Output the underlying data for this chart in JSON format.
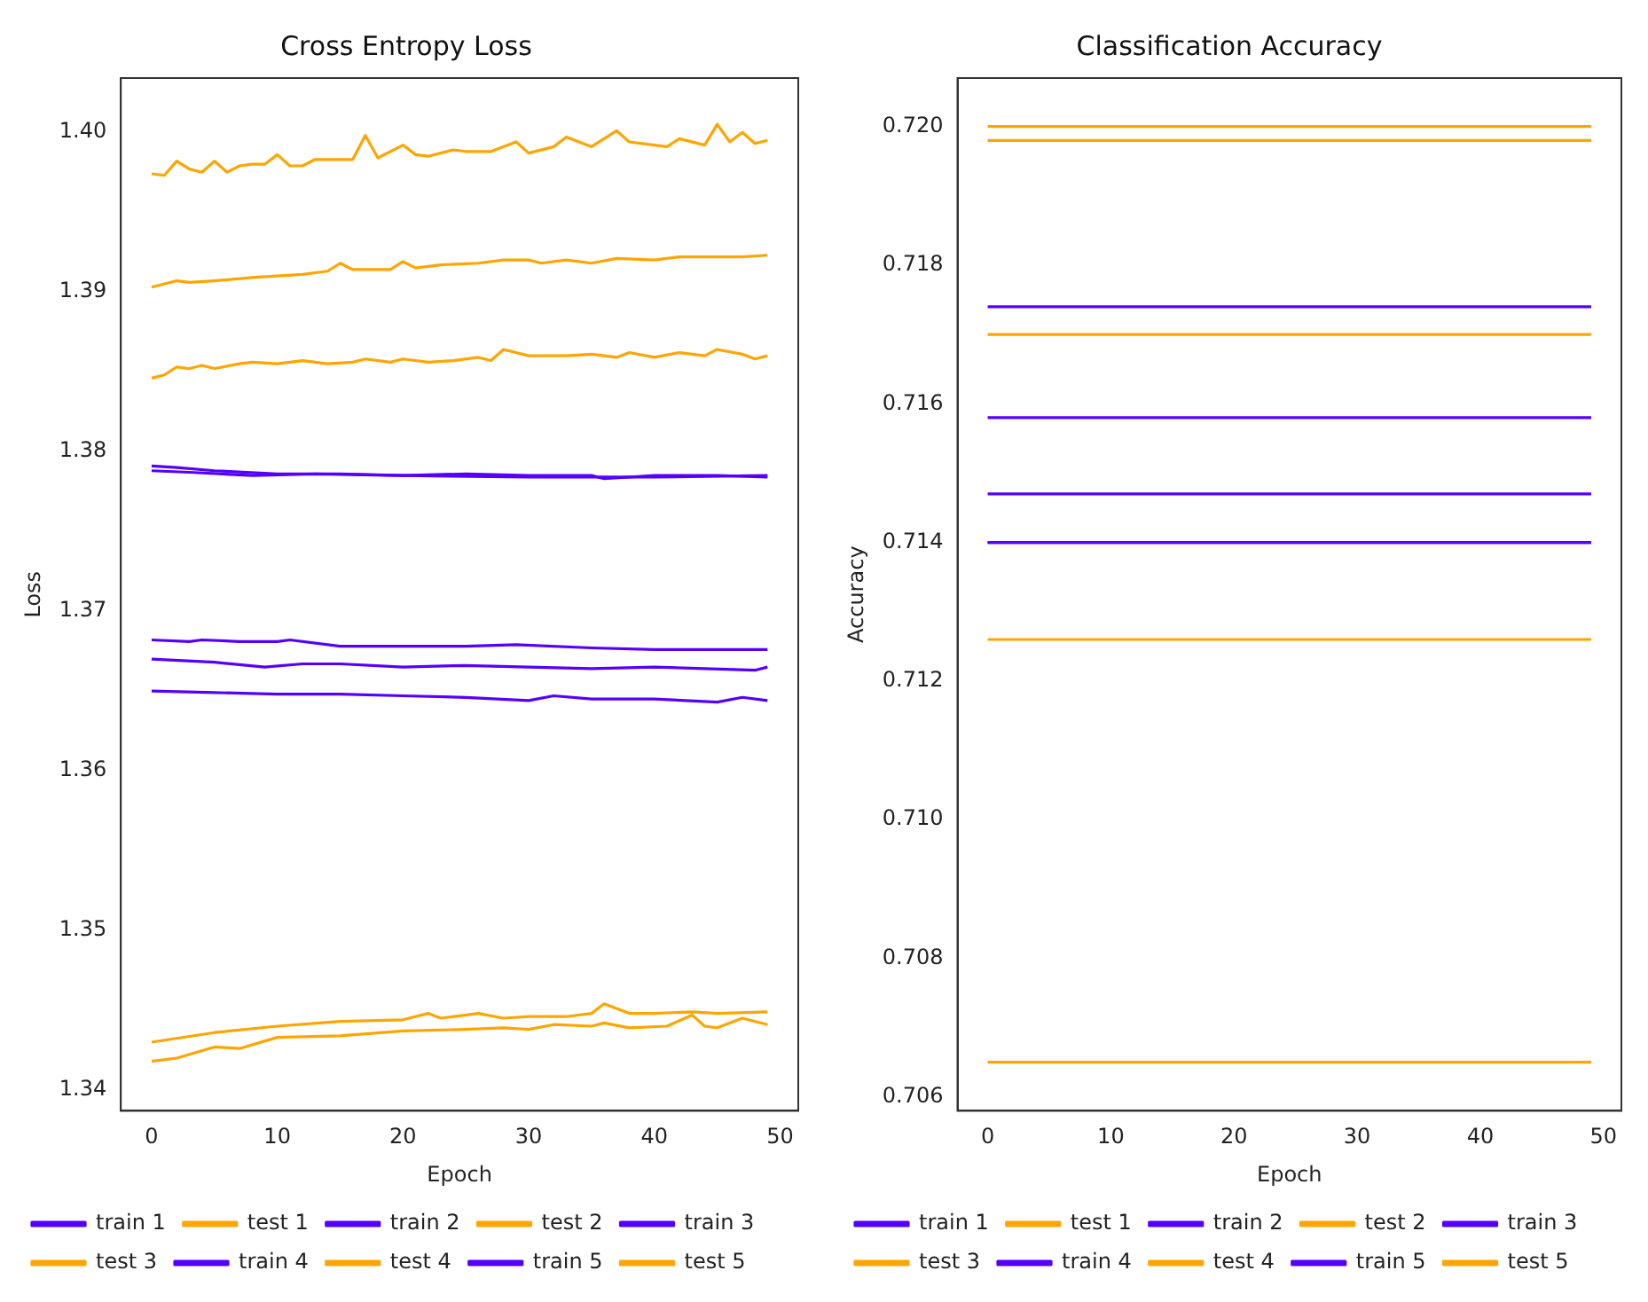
{
  "chart_data": [
    {
      "type": "line",
      "title": "Cross Entropy Loss",
      "xlabel": "Epoch",
      "ylabel": "Loss",
      "legend": "bottom left",
      "xlim": [
        -2.45,
        51.45
      ],
      "xticks": [
        0,
        10,
        20,
        30,
        40,
        50
      ],
      "ylim": [
        1.3387,
        1.4034
      ],
      "yticks": [
        1.34,
        1.35,
        1.36,
        1.37,
        1.38,
        1.39,
        {
          "value": 1.4,
          "label": "1.40"
        }
      ],
      "series": [
        {
          "name": "train 1",
          "color": "#5500ff",
          "x": [
            0,
            2,
            5,
            10,
            15,
            20,
            25,
            30,
            35,
            36,
            40,
            45,
            49
          ],
          "values": [
            1.3791,
            1.379,
            1.3788,
            1.3786,
            1.3786,
            1.3785,
            1.3786,
            1.3785,
            1.3785,
            1.3783,
            1.3785,
            1.3785,
            1.3784
          ]
        },
        {
          "name": "test 1",
          "color": "#ffa500",
          "x": [
            0,
            1,
            2,
            3,
            4,
            5,
            6,
            7,
            8,
            9,
            10,
            11,
            12,
            13,
            14,
            16,
            17,
            18,
            20,
            21,
            22,
            24,
            25,
            27,
            29,
            30,
            32,
            33,
            35,
            37,
            38,
            40,
            41,
            42,
            44,
            45,
            46,
            47,
            48,
            49
          ],
          "values": [
            1.3974,
            1.3973,
            1.3982,
            1.3977,
            1.3975,
            1.3982,
            1.3975,
            1.3979,
            1.398,
            1.398,
            1.3986,
            1.3979,
            1.3979,
            1.3983,
            1.3983,
            1.3983,
            1.3998,
            1.3984,
            1.3992,
            1.3986,
            1.3985,
            1.3989,
            1.3988,
            1.3988,
            1.3994,
            1.3987,
            1.3991,
            1.3997,
            1.3991,
            1.4001,
            1.3994,
            1.3992,
            1.3991,
            1.3996,
            1.3992,
            1.4005,
            1.3994,
            1.4,
            1.3993,
            1.3995
          ]
        },
        {
          "name": "train 2",
          "color": "#5500ff",
          "x": [
            0,
            3,
            8,
            13,
            20,
            30,
            40,
            49
          ],
          "values": [
            1.3788,
            1.3787,
            1.3785,
            1.3786,
            1.3785,
            1.3784,
            1.3784,
            1.3785
          ]
        },
        {
          "name": "test 2",
          "color": "#ffa500",
          "x": [
            0,
            2,
            3,
            5,
            8,
            10,
            12,
            14,
            15,
            16,
            19,
            20,
            21,
            23,
            26,
            28,
            30,
            31,
            33,
            35,
            37,
            40,
            42,
            44,
            47,
            49
          ],
          "values": [
            1.3903,
            1.3907,
            1.3906,
            1.3907,
            1.3909,
            1.391,
            1.3911,
            1.3913,
            1.3918,
            1.3914,
            1.3914,
            1.3919,
            1.3915,
            1.3917,
            1.3918,
            1.392,
            1.392,
            1.3918,
            1.392,
            1.3918,
            1.3921,
            1.392,
            1.3922,
            1.3922,
            1.3922,
            1.3923
          ]
        },
        {
          "name": "train 3",
          "color": "#5500ff",
          "x": [
            0,
            3,
            4,
            7,
            10,
            11,
            15,
            25,
            29,
            35,
            40,
            49
          ],
          "values": [
            1.3682,
            1.3681,
            1.3682,
            1.3681,
            1.3681,
            1.3682,
            1.3678,
            1.3678,
            1.3679,
            1.3677,
            1.3676,
            1.3676
          ]
        },
        {
          "name": "test 3",
          "color": "#ffa500",
          "x": [
            0,
            1,
            2,
            3,
            4,
            5,
            7,
            8,
            10,
            12,
            14,
            16,
            17,
            19,
            20,
            22,
            24,
            26,
            27,
            28,
            30,
            33,
            35,
            37,
            38,
            40,
            42,
            44,
            45,
            47,
            48,
            49
          ],
          "values": [
            1.3846,
            1.3848,
            1.3853,
            1.3852,
            1.3854,
            1.3852,
            1.3855,
            1.3856,
            1.3855,
            1.3857,
            1.3855,
            1.3856,
            1.3858,
            1.3856,
            1.3858,
            1.3856,
            1.3857,
            1.3859,
            1.3857,
            1.3864,
            1.386,
            1.386,
            1.3861,
            1.3859,
            1.3862,
            1.3859,
            1.3862,
            1.386,
            1.3864,
            1.3861,
            1.3858,
            1.386
          ]
        },
        {
          "name": "train 4",
          "color": "#5500ff",
          "x": [
            0,
            5,
            9,
            12,
            15,
            20,
            25,
            30,
            35,
            40,
            48,
            49
          ],
          "values": [
            1.367,
            1.3668,
            1.3665,
            1.3667,
            1.3667,
            1.3665,
            1.3666,
            1.3665,
            1.3664,
            1.3665,
            1.3663,
            1.3665
          ]
        },
        {
          "name": "test 4",
          "color": "#ffa500",
          "x": [
            0,
            5,
            10,
            15,
            20,
            22,
            23,
            26,
            28,
            30,
            33,
            35,
            36,
            38,
            40,
            43,
            45,
            49
          ],
          "values": [
            1.343,
            1.3436,
            1.344,
            1.3443,
            1.3444,
            1.3448,
            1.3445,
            1.3448,
            1.3445,
            1.3446,
            1.3446,
            1.3448,
            1.3454,
            1.3448,
            1.3448,
            1.3449,
            1.3448,
            1.3449
          ]
        },
        {
          "name": "train 5",
          "color": "#5500ff",
          "x": [
            0,
            5,
            10,
            15,
            20,
            25,
            30,
            32,
            35,
            40,
            45,
            47,
            49
          ],
          "values": [
            1.365,
            1.3649,
            1.3648,
            1.3648,
            1.3647,
            1.3646,
            1.3644,
            1.3647,
            1.3645,
            1.3645,
            1.3643,
            1.3646,
            1.3644
          ]
        },
        {
          "name": "test 5",
          "color": "#ffa500",
          "x": [
            0,
            2,
            5,
            7,
            10,
            15,
            20,
            25,
            28,
            30,
            32,
            35,
            36,
            38,
            41,
            43,
            44,
            45,
            47,
            49
          ],
          "values": [
            1.3418,
            1.342,
            1.3427,
            1.3426,
            1.3433,
            1.3434,
            1.3437,
            1.3438,
            1.3439,
            1.3438,
            1.3441,
            1.344,
            1.3442,
            1.3439,
            1.344,
            1.3447,
            1.344,
            1.3439,
            1.3445,
            1.3441
          ]
        }
      ]
    },
    {
      "type": "line",
      "title": "Classification Accuracy",
      "xlabel": "Epoch",
      "ylabel": "Accuracy",
      "legend": "bottom left",
      "xlim": [
        -2.45,
        51.45
      ],
      "xticks": [
        0,
        10,
        20,
        30,
        40,
        50
      ],
      "ylim": [
        0.7058,
        0.7207
      ],
      "yticks": [
        0.706,
        0.708,
        {
          "value": 0.71,
          "label": "0.710"
        },
        0.712,
        0.714,
        0.716,
        0.718,
        {
          "value": 0.72,
          "label": "0.720"
        }
      ],
      "x": [
        0,
        49
      ],
      "series": [
        {
          "name": "train 1",
          "color": "#5500ff",
          "values": [
            0.7174,
            0.7174
          ]
        },
        {
          "name": "test 1",
          "color": "#ffa500",
          "values": [
            0.72,
            0.72
          ]
        },
        {
          "name": "train 2",
          "color": "#5500ff",
          "values": [
            0.7158,
            0.7158
          ]
        },
        {
          "name": "test 2",
          "color": "#ffa500",
          "values": [
            0.7198,
            0.7198
          ]
        },
        {
          "name": "train 3",
          "color": "#5500ff",
          "values": [
            0.7147,
            0.7147
          ]
        },
        {
          "name": "test 3",
          "color": "#ffa500",
          "values": [
            0.717,
            0.717
          ]
        },
        {
          "name": "train 4",
          "color": "#5500ff",
          "values": [
            0.714,
            0.714
          ]
        },
        {
          "name": "test 4",
          "color": "#ffa500",
          "values": [
            0.7126,
            0.7126
          ]
        },
        {
          "name": "train 5",
          "color": "#5500ff",
          "values": [
            0.714,
            0.714
          ]
        },
        {
          "name": "test 5",
          "color": "#ffa500",
          "values": [
            0.7065,
            0.7065
          ]
        }
      ]
    }
  ]
}
